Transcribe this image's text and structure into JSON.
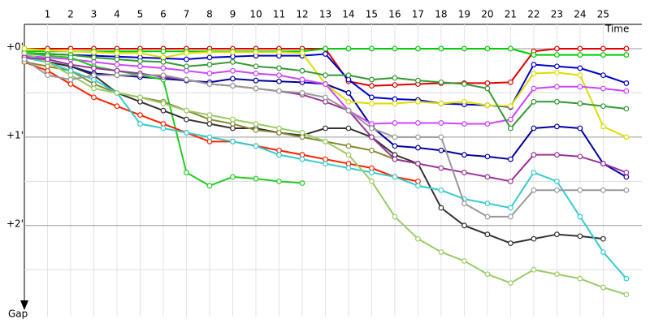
{
  "chart_data": {
    "type": "line",
    "x_label": "Time",
    "y_label": "Gap",
    "x": [
      0,
      1,
      2,
      3,
      4,
      5,
      6,
      7,
      8,
      9,
      10,
      11,
      12,
      13,
      14,
      15,
      16,
      17,
      18,
      19,
      20,
      21,
      22,
      23,
      24,
      25,
      26
    ],
    "xlim": [
      0,
      26.67
    ],
    "xticks": [
      1,
      2,
      3,
      4,
      5,
      6,
      7,
      8,
      9,
      10,
      11,
      12,
      13,
      14,
      15,
      16,
      17,
      18,
      19,
      20,
      21,
      22,
      23,
      24,
      25
    ],
    "ylim": [
      -0.275,
      3.03
    ],
    "y_inverted": true,
    "yticks": [
      {
        "value": 0,
        "label": "+0'"
      },
      {
        "value": 1,
        "label": "+1'"
      },
      {
        "value": 2,
        "label": "+2'"
      }
    ],
    "minor_yticks": [
      0.5,
      1.5,
      2.5
    ],
    "grid": true,
    "series": [
      {
        "color": "#e00000",
        "values": [
          0,
          0,
          0,
          0,
          0,
          0,
          0,
          0,
          0,
          0,
          0,
          0,
          0,
          0,
          0.37,
          0.42,
          0.41,
          0.4,
          0.39,
          0.39,
          0.39,
          0.38,
          0.03,
          0,
          0,
          0,
          0
        ]
      },
      {
        "color": "#00cc00",
        "values": [
          0.03,
          0.03,
          0.03,
          0.03,
          0.03,
          0.03,
          0.03,
          0.03,
          0.03,
          0.03,
          0.03,
          0.03,
          0.03,
          0,
          0,
          0,
          0,
          0,
          0,
          0,
          0,
          0,
          0.07,
          0.07,
          0.07,
          0.07,
          0.07
        ]
      },
      {
        "color": "#0000cc",
        "values": [
          0.05,
          0.06,
          0.07,
          0.08,
          0.09,
          0.1,
          0.11,
          0.12,
          0.1,
          0.09,
          0.08,
          0.08,
          0.08,
          0.06,
          0.35,
          0.55,
          0.57,
          0.58,
          0.62,
          0.63,
          0.64,
          0.66,
          0.18,
          0.2,
          0.22,
          0.3,
          0.39
        ]
      },
      {
        "color": "#0000a0",
        "values": [
          0.1,
          0.15,
          0.2,
          0.28,
          0.3,
          0.32,
          0.34,
          0.36,
          0.38,
          0.34,
          0.36,
          0.37,
          0.38,
          0.4,
          0.5,
          0.88,
          1.1,
          1.12,
          1.15,
          1.2,
          1.22,
          1.25,
          0.9,
          0.88,
          0.9,
          1.3,
          1.45
        ]
      },
      {
        "color": "#dddd00",
        "values": [
          0,
          0.02,
          0.03,
          0.04,
          0.05,
          0.05,
          0.1,
          0.05,
          0.04,
          0.04,
          0.04,
          0.04,
          0.05,
          0.4,
          0.6,
          0.62,
          0.62,
          0.6,
          0.62,
          0.6,
          0.64,
          0.65,
          0.28,
          0.27,
          0.3,
          0.88,
          1.0
        ]
      },
      {
        "color": "#cc44ff",
        "values": [
          0.08,
          0.1,
          0.12,
          0.15,
          0.18,
          0.2,
          0.22,
          0.25,
          0.28,
          0.25,
          0.28,
          0.3,
          0.35,
          0.4,
          0.7,
          0.85,
          0.84,
          0.84,
          0.84,
          0.85,
          0.85,
          0.8,
          0.45,
          0.43,
          0.43,
          0.45,
          0.48
        ]
      },
      {
        "color": "#339933",
        "values": [
          0.05,
          0.06,
          0.07,
          0.1,
          0.12,
          0.14,
          0.15,
          0.2,
          0.18,
          0.15,
          0.2,
          0.22,
          0.25,
          0.3,
          0.3,
          0.35,
          0.33,
          0.36,
          0.38,
          0.4,
          0.45,
          0.9,
          0.6,
          0.6,
          0.62,
          0.65,
          0.68
        ]
      },
      {
        "color": "#22cc22",
        "values": [
          0.05,
          0.08,
          0.1,
          0.2,
          0.25,
          0.3,
          0.35,
          1.4,
          1.55,
          1.45,
          1.47,
          1.5,
          1.52,
          null,
          null,
          null,
          null,
          null,
          null,
          null,
          null,
          null,
          null,
          null,
          null,
          null,
          null
        ]
      },
      {
        "color": "#ff2200",
        "values": [
          0.15,
          0.25,
          0.4,
          0.55,
          0.65,
          0.75,
          0.85,
          0.95,
          1.05,
          1.05,
          1.1,
          1.15,
          1.2,
          1.25,
          1.3,
          1.35,
          1.45,
          1.5,
          null,
          null,
          null,
          null,
          null,
          null,
          null,
          null,
          null
        ]
      },
      {
        "color": "#333333",
        "values": [
          0.1,
          0.15,
          0.2,
          0.3,
          0.5,
          0.6,
          0.7,
          0.8,
          0.85,
          0.9,
          0.9,
          0.95,
          0.98,
          0.9,
          0.9,
          1.0,
          1.2,
          1.3,
          1.8,
          2.0,
          2.1,
          2.2,
          2.15,
          2.1,
          2.12,
          2.15,
          null
        ]
      },
      {
        "color": "#888833",
        "values": [
          0.15,
          0.2,
          0.25,
          0.4,
          0.5,
          0.55,
          0.6,
          0.7,
          0.8,
          0.85,
          0.92,
          0.95,
          1.0,
          1.05,
          1.1,
          1.15,
          1.25,
          1.3,
          null,
          null,
          null,
          null,
          null,
          null,
          null,
          null,
          null
        ]
      },
      {
        "color": "#33cccc",
        "values": [
          0.1,
          0.15,
          0.25,
          0.35,
          0.5,
          0.85,
          0.9,
          0.95,
          1.0,
          1.05,
          1.1,
          1.2,
          1.25,
          1.3,
          1.35,
          1.4,
          1.45,
          1.55,
          1.6,
          1.7,
          1.75,
          1.8,
          1.4,
          1.5,
          1.9,
          2.3,
          2.6
        ]
      },
      {
        "color": "#99cc66",
        "values": [
          0.05,
          0.15,
          0.3,
          0.45,
          0.5,
          0.55,
          0.62,
          0.7,
          0.75,
          0.8,
          0.85,
          0.9,
          0.95,
          1.05,
          1.2,
          1.5,
          1.9,
          2.15,
          2.3,
          2.4,
          2.55,
          2.65,
          2.5,
          2.55,
          2.6,
          2.7,
          2.78
        ]
      },
      {
        "color": "#993399",
        "values": [
          0.1,
          0.12,
          0.18,
          0.22,
          0.25,
          0.28,
          0.32,
          0.35,
          0.4,
          0.42,
          0.45,
          0.48,
          0.52,
          0.6,
          0.7,
          1.0,
          1.25,
          1.3,
          1.35,
          1.4,
          1.45,
          1.5,
          1.2,
          1.2,
          1.22,
          1.3,
          1.4
        ]
      },
      {
        "color": "#999999",
        "values": [
          0.12,
          0.3,
          0.35,
          0.3,
          0.3,
          0.3,
          0.3,
          0.35,
          0.4,
          0.42,
          0.45,
          0.48,
          0.5,
          0.55,
          0.7,
          0.9,
          1.0,
          1.0,
          1.0,
          1.75,
          1.9,
          1.9,
          1.6,
          1.6,
          1.6,
          1.6,
          1.6
        ]
      }
    ]
  }
}
